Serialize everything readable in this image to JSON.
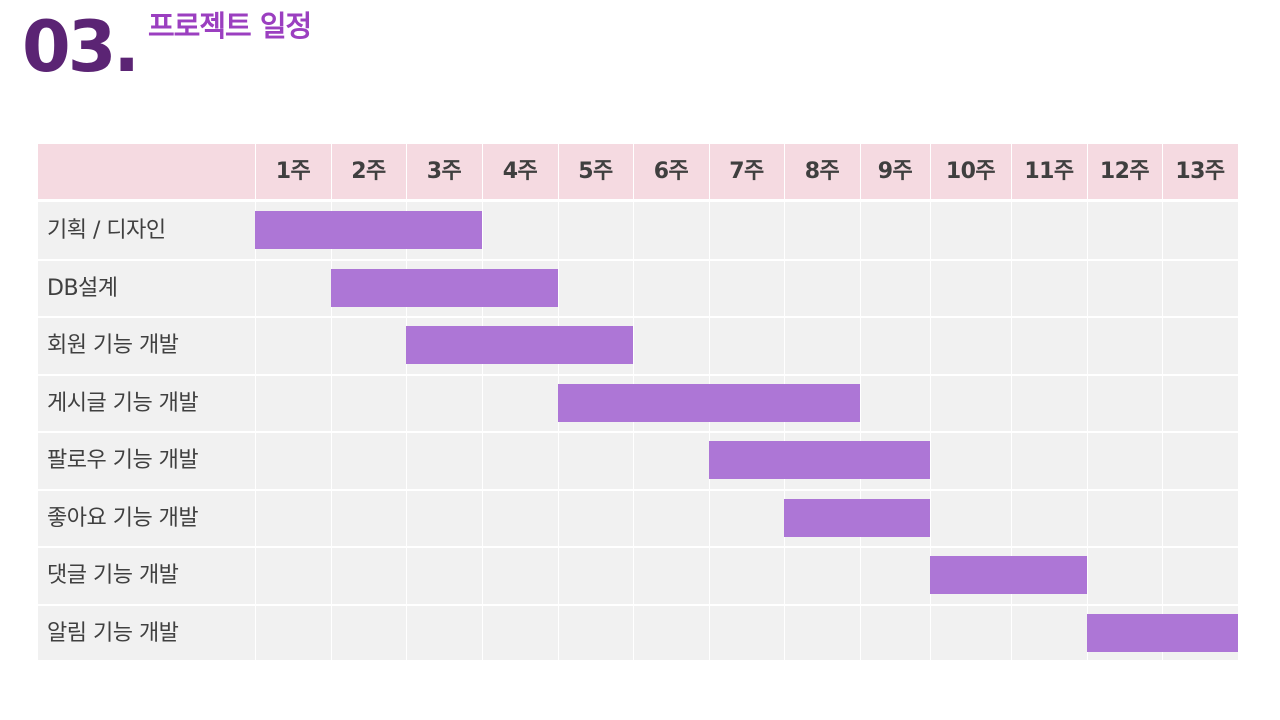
{
  "header": {
    "number": "03.",
    "title": "프로젝트 일정"
  },
  "colors": {
    "number": "#5b2474",
    "title": "#9b3fc0",
    "bar": "#ad76d6",
    "header_band": "#f5dae1",
    "body_band": "#f1f1f1"
  },
  "chart_data": {
    "type": "gantt",
    "weeks": [
      "1주",
      "2주",
      "3주",
      "4주",
      "5주",
      "6주",
      "7주",
      "8주",
      "9주",
      "10주",
      "11주",
      "12주",
      "13주"
    ],
    "tasks": [
      {
        "label": "기획 / 디자인",
        "start_week": 1,
        "end_week": 3
      },
      {
        "label": "DB설계",
        "start_week": 2,
        "end_week": 4
      },
      {
        "label": "회원 기능 개발",
        "start_week": 3,
        "end_week": 5
      },
      {
        "label": "게시글 기능 개발",
        "start_week": 5,
        "end_week": 8
      },
      {
        "label": "팔로우 기능 개발",
        "start_week": 7,
        "end_week": 9
      },
      {
        "label": "좋아요 기능 개발",
        "start_week": 8,
        "end_week": 9
      },
      {
        "label": "댓글 기능 개발",
        "start_week": 10,
        "end_week": 11
      },
      {
        "label": "알림 기능 개발",
        "start_week": 12,
        "end_week": 13
      }
    ]
  }
}
